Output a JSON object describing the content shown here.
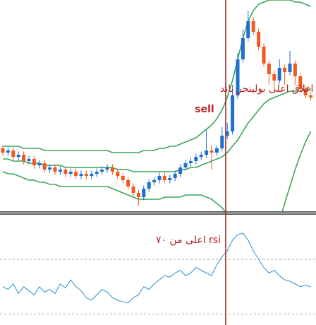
{
  "charts": [
    {
      "type": "candlestick",
      "ylim": [
        0,
        100
      ],
      "annotations": [
        "اغلاق اعلى بولينجر باند",
        "sell"
      ],
      "up_color": "#1f6fd0",
      "down_color": "#f05a1e",
      "ohlc": [
        [
          30,
          31.5,
          26.5,
          28
        ],
        [
          28,
          30.5,
          26.5,
          29
        ],
        [
          29,
          30.5,
          24.5,
          26
        ],
        [
          26,
          28.5,
          24.5,
          27
        ],
        [
          27,
          28.5,
          22.5,
          24
        ],
        [
          24,
          26.5,
          22.5,
          25
        ],
        [
          25,
          26.5,
          20.5,
          22
        ],
        [
          22,
          24.5,
          20.5,
          23
        ],
        [
          23,
          24.5,
          18.5,
          20
        ],
        [
          20,
          22.5,
          18.5,
          21
        ],
        [
          21,
          22.5,
          17.5,
          19
        ],
        [
          19,
          21.5,
          17.5,
          20
        ],
        [
          20,
          21.5,
          16.5,
          18
        ],
        [
          18,
          20.5,
          16.5,
          19
        ],
        [
          19,
          20.5,
          15.5,
          17
        ],
        [
          17,
          19.5,
          15.5,
          18
        ],
        [
          18,
          19.5,
          15.5,
          17
        ],
        [
          17,
          19.5,
          15.5,
          18
        ],
        [
          18,
          20.5,
          16.5,
          19
        ],
        [
          19,
          21.5,
          17.5,
          20
        ],
        [
          20,
          22.5,
          18.5,
          21
        ],
        [
          21,
          22.5,
          17.5,
          19
        ],
        [
          19,
          20.5,
          15.5,
          17
        ],
        [
          17,
          18.5,
          13.5,
          15
        ],
        [
          15,
          16.5,
          10.5,
          12
        ],
        [
          12,
          13.5,
          7.5,
          9
        ],
        [
          9,
          10.5,
          3,
          7
        ],
        [
          7,
          12.5,
          5.5,
          11
        ],
        [
          11,
          15.5,
          9.5,
          14
        ],
        [
          14,
          16.5,
          12.5,
          15
        ],
        [
          15,
          18.5,
          13.5,
          17
        ],
        [
          17,
          18.5,
          13.5,
          15
        ],
        [
          15,
          17.5,
          13.5,
          16
        ],
        [
          16,
          19.5,
          14.5,
          18
        ],
        [
          18,
          22.5,
          16.5,
          21
        ],
        [
          21,
          24.5,
          19.5,
          23
        ],
        [
          23,
          25.5,
          21.5,
          24
        ],
        [
          24,
          27.5,
          22.5,
          26
        ],
        [
          26,
          28.5,
          24.5,
          27
        ],
        [
          27,
          39,
          25.5,
          29
        ],
        [
          29,
          31.5,
          20,
          28
        ],
        [
          28,
          31.5,
          26.5,
          30
        ],
        [
          30,
          40,
          28.5,
          36
        ],
        [
          36,
          42,
          34.5,
          38
        ],
        [
          38,
          60,
          36.5,
          55
        ],
        [
          55,
          75,
          53.5,
          72
        ],
        [
          72,
          86,
          70.5,
          82
        ],
        [
          82,
          95,
          80.5,
          90
        ],
        [
          90,
          92,
          83.5,
          85
        ],
        [
          85,
          86.5,
          76.5,
          78
        ],
        [
          78,
          79.5,
          68.5,
          70
        ],
        [
          70,
          71.5,
          60,
          65
        ],
        [
          65,
          66.5,
          58,
          62
        ],
        [
          62,
          72,
          60.5,
          68
        ],
        [
          68,
          69.5,
          60,
          66
        ],
        [
          66,
          76,
          64.5,
          70
        ],
        [
          70,
          71.5,
          60,
          64
        ],
        [
          64,
          65.5,
          56.5,
          58
        ],
        [
          58,
          59.5,
          53.5,
          55
        ],
        [
          55,
          56.5,
          52.5,
          54
        ]
      ],
      "bands": {
        "color": "#3aa65a",
        "upper": [
          31,
          31,
          31,
          31,
          30,
          30,
          30,
          30,
          29,
          29,
          29,
          29,
          29,
          29,
          29,
          29,
          29,
          29,
          29,
          29,
          29,
          28,
          28,
          28,
          28,
          28,
          28,
          29,
          29,
          29,
          30,
          30,
          31,
          31,
          32,
          33,
          34,
          35,
          37,
          39,
          41,
          44,
          48,
          54,
          62,
          72,
          82,
          90,
          95,
          98,
          99,
          100,
          100,
          100,
          100,
          100,
          99,
          99,
          98,
          97
        ],
        "middle": [
          25,
          25,
          24,
          24,
          24,
          23,
          23,
          23,
          22,
          22,
          22,
          22,
          21,
          21,
          21,
          21,
          21,
          21,
          21,
          21,
          21,
          21,
          20,
          20,
          20,
          19,
          19,
          19,
          19,
          19,
          19,
          19,
          19,
          19,
          20,
          20,
          21,
          21,
          22,
          23,
          24,
          25,
          26,
          28,
          31,
          34,
          38,
          42,
          45,
          48,
          51,
          53,
          54,
          55,
          56,
          57,
          57,
          57,
          58,
          58
        ],
        "lower": [
          19,
          18,
          18,
          17,
          16,
          15,
          15,
          14,
          14,
          13,
          13,
          12,
          12,
          12,
          12,
          12,
          12,
          12,
          12,
          12,
          12,
          11,
          10,
          9,
          8,
          7,
          6,
          6,
          6,
          6,
          6,
          7,
          7,
          7,
          7,
          8,
          8,
          8,
          8,
          7,
          6,
          4,
          2,
          -1,
          -6,
          -12,
          -18,
          -22,
          -24,
          -24,
          -22,
          -18,
          -12,
          -4,
          4,
          12,
          20,
          27,
          33,
          38
        ]
      }
    },
    {
      "type": "line",
      "ylim": [
        22,
        102
      ],
      "levels": [
        30,
        70
      ],
      "annotation": "rsi اعلى من ٧٠",
      "color": "#2b8fd6",
      "values": [
        50,
        48,
        52,
        45,
        50,
        47,
        44,
        50,
        46,
        48,
        45,
        52,
        49,
        55,
        50,
        47,
        42,
        40,
        44,
        48,
        46,
        42,
        40,
        39,
        38,
        42,
        44,
        50,
        48,
        52,
        55,
        58,
        57,
        60,
        62,
        58,
        60,
        64,
        62,
        60,
        58,
        66,
        72,
        76,
        84,
        88,
        89,
        84,
        76,
        70,
        64,
        60,
        62,
        58,
        55,
        54,
        52,
        50,
        51,
        50
      ]
    }
  ]
}
